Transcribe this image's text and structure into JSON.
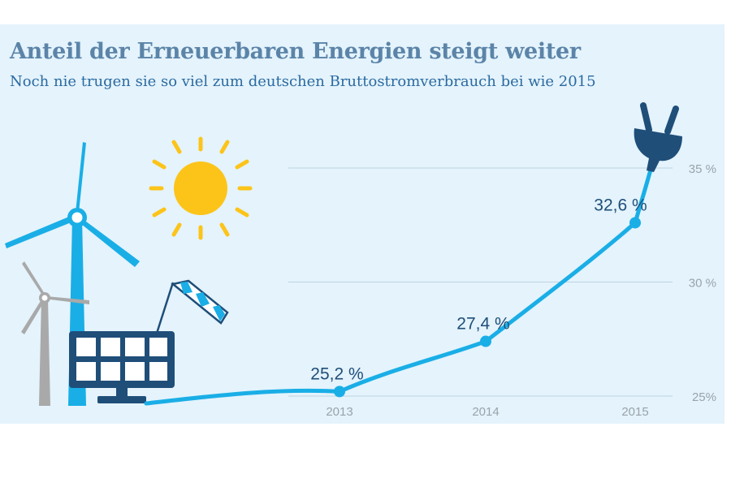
{
  "header": {
    "title": "Anteil der Erneuerbaren Energien steigt weiter",
    "subtitle": "Noch nie trugen sie so viel zum deutschen Bruttostromverbrauch bei wie 2015"
  },
  "icons": [
    "wind-turbine-icon",
    "sun-icon",
    "windsock-icon",
    "solar-panel-icon",
    "power-plug-icon"
  ],
  "colors": {
    "line": "#1aaee6",
    "panel_background": "#e4f3fc",
    "sun": "#fcc419",
    "dark_blue": "#1f4e79"
  },
  "chart_data": {
    "type": "line",
    "title": "Anteil der Erneuerbaren Energien steigt weiter",
    "subtitle": "Noch nie trugen sie so viel zum deutschen Bruttostromverbrauch bei wie 2015",
    "xlabel": "",
    "ylabel": "",
    "categories": [
      "2013",
      "2014",
      "2015"
    ],
    "values": [
      25.2,
      27.4,
      32.6
    ],
    "data_labels": [
      "25,2 %",
      "27,4 %",
      "32,6 %"
    ],
    "y_ticks": [
      {
        "value": 25,
        "label": "25%"
      },
      {
        "value": 30,
        "label": "30 %"
      },
      {
        "value": 35,
        "label": "35 %"
      }
    ],
    "ylim": [
      25,
      35
    ],
    "grid": true,
    "legend": "none"
  }
}
